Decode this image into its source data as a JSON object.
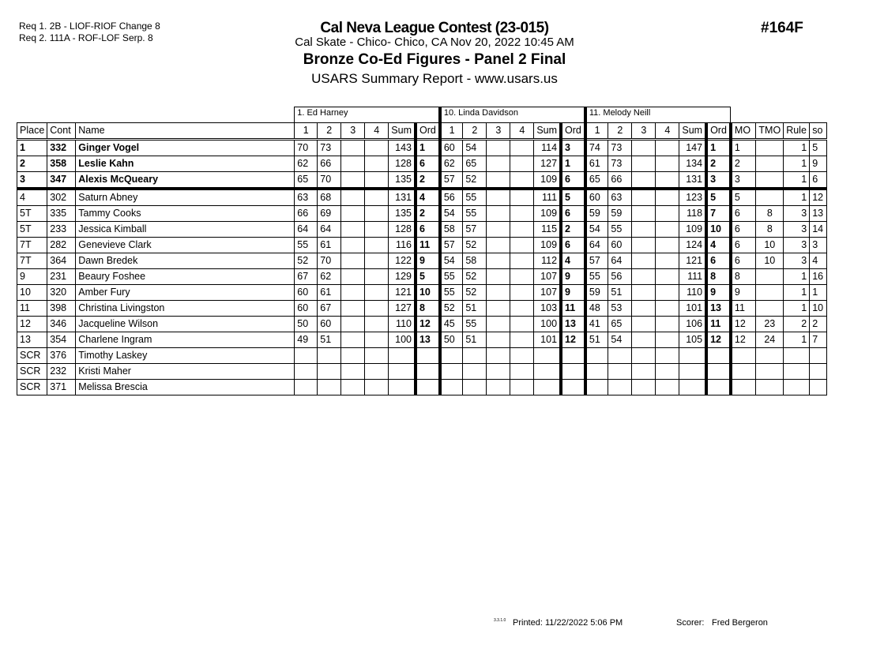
{
  "requirements": [
    "Req  1.  2B - LIOF-RIOF Change 8",
    "Req  2.  111A - ROF-LOF Serp. 8"
  ],
  "header": {
    "title": "Cal Neva League Contest (23-015)",
    "subtitle": "Cal Skate - Chico- Chico, CA  Nov 20, 2022  10:45 AM",
    "event": "Bronze Co-Ed Figures - Panel 2 Final",
    "report": "USARS Summary Report - www.usars.us",
    "event_number": "#164F"
  },
  "judges": [
    "1.  Ed Harney",
    "10.  Linda Davidson",
    "11.  Melody Neill"
  ],
  "columns": {
    "place": "Place",
    "cont": "Cont",
    "name": "Name",
    "judge_cols": [
      "1",
      "2",
      "3",
      "4",
      "Sum",
      "Ord"
    ],
    "mo": "MO",
    "tmo": "TMO",
    "rule": "Rule",
    "so": "so"
  },
  "rows": [
    {
      "place": "1",
      "cont": "332",
      "name": "Ginger Vogel",
      "j": [
        [
          "70",
          "73",
          "",
          "",
          "143",
          "1"
        ],
        [
          "60",
          "54",
          "",
          "",
          "114",
          "3"
        ],
        [
          "74",
          "73",
          "",
          "",
          "147",
          "1"
        ]
      ],
      "mo": "1",
      "tmo": "",
      "rule": "1",
      "so": "5"
    },
    {
      "place": "2",
      "cont": "358",
      "name": "Leslie Kahn",
      "j": [
        [
          "62",
          "66",
          "",
          "",
          "128",
          "6"
        ],
        [
          "62",
          "65",
          "",
          "",
          "127",
          "1"
        ],
        [
          "61",
          "73",
          "",
          "",
          "134",
          "2"
        ]
      ],
      "mo": "2",
      "tmo": "",
      "rule": "1",
      "so": "9"
    },
    {
      "place": "3",
      "cont": "347",
      "name": "Alexis McQueary",
      "j": [
        [
          "65",
          "70",
          "",
          "",
          "135",
          "2"
        ],
        [
          "57",
          "52",
          "",
          "",
          "109",
          "6"
        ],
        [
          "65",
          "66",
          "",
          "",
          "131",
          "3"
        ]
      ],
      "mo": "3",
      "tmo": "",
      "rule": "1",
      "so": "6"
    },
    {
      "place": "4",
      "cont": "302",
      "name": "Saturn Abney",
      "j": [
        [
          "63",
          "68",
          "",
          "",
          "131",
          "4"
        ],
        [
          "56",
          "55",
          "",
          "",
          "111",
          "5"
        ],
        [
          "60",
          "63",
          "",
          "",
          "123",
          "5"
        ]
      ],
      "mo": "5",
      "tmo": "",
      "rule": "1",
      "so": "12"
    },
    {
      "place": "5T",
      "cont": "335",
      "name": "Tammy Cooks",
      "j": [
        [
          "66",
          "69",
          "",
          "",
          "135",
          "2"
        ],
        [
          "54",
          "55",
          "",
          "",
          "109",
          "6"
        ],
        [
          "59",
          "59",
          "",
          "",
          "118",
          "7"
        ]
      ],
      "mo": "6",
      "tmo": "8",
      "rule": "3",
      "so": "13"
    },
    {
      "place": "5T",
      "cont": "233",
      "name": "Jessica Kimball",
      "j": [
        [
          "64",
          "64",
          "",
          "",
          "128",
          "6"
        ],
        [
          "58",
          "57",
          "",
          "",
          "115",
          "2"
        ],
        [
          "54",
          "55",
          "",
          "",
          "109",
          "10"
        ]
      ],
      "mo": "6",
      "tmo": "8",
      "rule": "3",
      "so": "14"
    },
    {
      "place": "7T",
      "cont": "282",
      "name": "Genevieve Clark",
      "j": [
        [
          "55",
          "61",
          "",
          "",
          "116",
          "11"
        ],
        [
          "57",
          "52",
          "",
          "",
          "109",
          "6"
        ],
        [
          "64",
          "60",
          "",
          "",
          "124",
          "4"
        ]
      ],
      "mo": "6",
      "tmo": "10",
      "rule": "3",
      "so": "3"
    },
    {
      "place": "7T",
      "cont": "364",
      "name": "Dawn Bredek",
      "j": [
        [
          "52",
          "70",
          "",
          "",
          "122",
          "9"
        ],
        [
          "54",
          "58",
          "",
          "",
          "112",
          "4"
        ],
        [
          "57",
          "64",
          "",
          "",
          "121",
          "6"
        ]
      ],
      "mo": "6",
      "tmo": "10",
      "rule": "3",
      "so": "4"
    },
    {
      "place": "9",
      "cont": "231",
      "name": "Beaury Foshee",
      "j": [
        [
          "67",
          "62",
          "",
          "",
          "129",
          "5"
        ],
        [
          "55",
          "52",
          "",
          "",
          "107",
          "9"
        ],
        [
          "55",
          "56",
          "",
          "",
          "111",
          "8"
        ]
      ],
      "mo": "8",
      "tmo": "",
      "rule": "1",
      "so": "16"
    },
    {
      "place": "10",
      "cont": "320",
      "name": "Amber Fury",
      "j": [
        [
          "60",
          "61",
          "",
          "",
          "121",
          "10"
        ],
        [
          "55",
          "52",
          "",
          "",
          "107",
          "9"
        ],
        [
          "59",
          "51",
          "",
          "",
          "110",
          "9"
        ]
      ],
      "mo": "9",
      "tmo": "",
      "rule": "1",
      "so": "1"
    },
    {
      "place": "11",
      "cont": "398",
      "name": "Christina Livingston",
      "j": [
        [
          "60",
          "67",
          "",
          "",
          "127",
          "8"
        ],
        [
          "52",
          "51",
          "",
          "",
          "103",
          "11"
        ],
        [
          "48",
          "53",
          "",
          "",
          "101",
          "13"
        ]
      ],
      "mo": "11",
      "tmo": "",
      "rule": "1",
      "so": "10"
    },
    {
      "place": "12",
      "cont": "346",
      "name": "Jacqueline Wilson",
      "j": [
        [
          "50",
          "60",
          "",
          "",
          "110",
          "12"
        ],
        [
          "45",
          "55",
          "",
          "",
          "100",
          "13"
        ],
        [
          "41",
          "65",
          "",
          "",
          "106",
          "11"
        ]
      ],
      "mo": "12",
      "tmo": "23",
      "rule": "2",
      "so": "2"
    },
    {
      "place": "13",
      "cont": "354",
      "name": "Charlene Ingram",
      "j": [
        [
          "49",
          "51",
          "",
          "",
          "100",
          "13"
        ],
        [
          "50",
          "51",
          "",
          "",
          "101",
          "12"
        ],
        [
          "51",
          "54",
          "",
          "",
          "105",
          "12"
        ]
      ],
      "mo": "12",
      "tmo": "24",
      "rule": "1",
      "so": "7"
    },
    {
      "place": "SCR",
      "cont": "376",
      "name": "Timothy Laskey",
      "j": [
        [
          "",
          "",
          "",
          "",
          "",
          ""
        ],
        [
          "",
          "",
          "",
          "",
          "",
          ""
        ],
        [
          "",
          "",
          "",
          "",
          "",
          ""
        ]
      ],
      "mo": "",
      "tmo": "",
      "rule": "",
      "so": ""
    },
    {
      "place": "SCR",
      "cont": "232",
      "name": "Kristi Maher",
      "j": [
        [
          "",
          "",
          "",
          "",
          "",
          ""
        ],
        [
          "",
          "",
          "",
          "",
          "",
          ""
        ],
        [
          "",
          "",
          "",
          "",
          "",
          ""
        ]
      ],
      "mo": "",
      "tmo": "",
      "rule": "",
      "so": ""
    },
    {
      "place": "SCR",
      "cont": "371",
      "name": "Melissa Brescia",
      "j": [
        [
          "",
          "",
          "",
          "",
          "",
          ""
        ],
        [
          "",
          "",
          "",
          "",
          "",
          ""
        ],
        [
          "",
          "",
          "",
          "",
          "",
          ""
        ]
      ],
      "mo": "",
      "tmo": "",
      "rule": "",
      "so": ""
    }
  ],
  "footer": {
    "version": "3.3.1.0",
    "printed": "Printed:  11/22/2022  5:06 PM",
    "scorer_label": "Scorer:",
    "scorer": "Fred Bergeron"
  }
}
